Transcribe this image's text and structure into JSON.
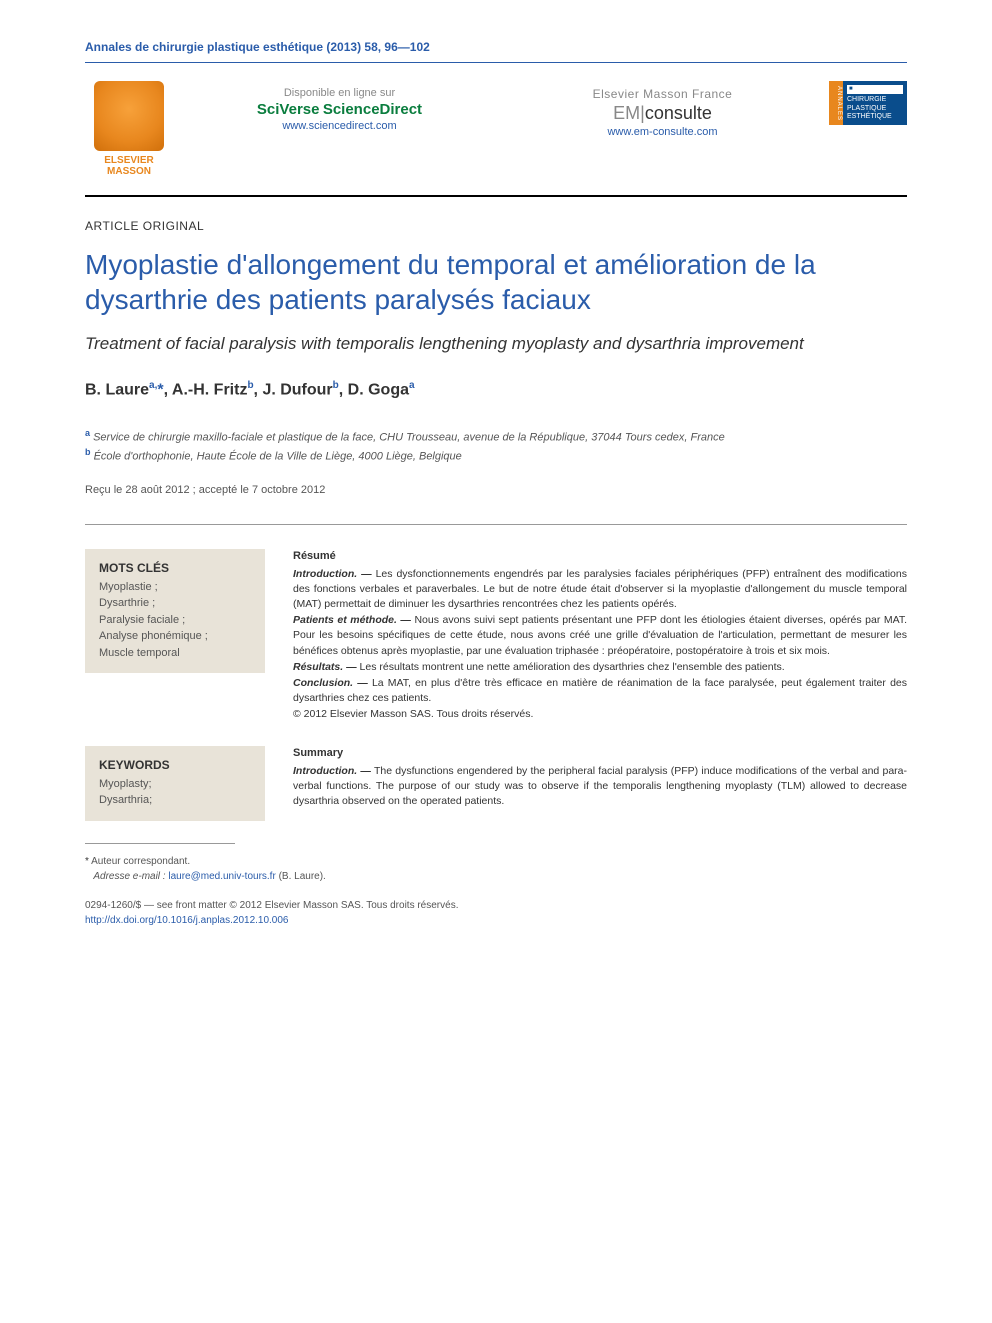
{
  "journal_ref": "Annales de chirurgie plastique esthétique (2013) 58, 96—102",
  "publisher": {
    "name_line1": "ELSEVIER",
    "name_line2": "MASSON"
  },
  "header_left": {
    "available": "Disponible en ligne sur",
    "brand_sv": "SciVerse",
    "brand_sd": "ScienceDirect",
    "url": "www.sciencedirect.com"
  },
  "header_right": {
    "top": "Elsevier Masson France",
    "brand_em": "EM",
    "brand_consulte": "consulte",
    "url": "www.em-consulte.com"
  },
  "cover": {
    "side": "ANNALES",
    "line1": "CHIRURGIE",
    "line2": "PLASTIQUE",
    "line3": "ESTHÉTIQUE"
  },
  "article_type": "ARTICLE ORIGINAL",
  "title_fr": "Myoplastie d'allongement du temporal et amélioration de la dysarthrie des patients paralysés faciaux",
  "title_en": "Treatment of facial paralysis with temporalis lengthening myoplasty and dysarthria improvement",
  "authors_html": "B. Laure<sup>a,</sup><span class='star'>*</span>, A.-H. Fritz<sup>b</sup>, J. Dufour<sup>b</sup>, D. Goga<sup>a</sup>",
  "affiliations": {
    "a": "Service de chirurgie maxillo-faciale et plastique de la face, CHU Trousseau, avenue de la République, 37044 Tours cedex, France",
    "b": "École d'orthophonie, Haute École de la Ville de Liège, 4000 Liège, Belgique"
  },
  "dates": "Reçu le 28 août 2012 ; accepté le 7 octobre 2012",
  "mots_cles": {
    "heading": "MOTS CLÉS",
    "items": "Myoplastie ;\nDysarthrie ;\nParalysie faciale ;\nAnalyse phonémique ;\nMuscle temporal"
  },
  "resume": {
    "heading": "Résumé",
    "intro_label": "Introduction. —",
    "intro": "Les dysfonctionnements engendrés par les paralysies faciales périphériques (PFP) entraînent des modifications des fonctions verbales et paraverbales. Le but de notre étude était d'observer si la myoplastie d'allongement du muscle temporal (MAT) permettait de diminuer les dysarthries rencontrées chez les patients opérés.",
    "patients_label": "Patients et méthode. —",
    "patients": "Nous avons suivi sept patients présentant une PFP dont les étiologies étaient diverses, opérés par MAT. Pour les besoins spécifiques de cette étude, nous avons créé une grille d'évaluation de l'articulation, permettant de mesurer les bénéfices obtenus après myoplastie, par une évaluation triphasée : préopératoire, postopératoire à trois et six mois.",
    "results_label": "Résultats. —",
    "results": "Les résultats montrent une nette amélioration des dysarthries chez l'ensemble des patients.",
    "conclusion_label": "Conclusion. —",
    "conclusion": "La MAT, en plus d'être très efficace en matière de réanimation de la face paralysée, peut également traiter des dysarthries chez ces patients.",
    "copyright": "© 2012 Elsevier Masson SAS. Tous droits réservés."
  },
  "keywords": {
    "heading": "KEYWORDS",
    "items": "Myoplasty;\nDysarthria;"
  },
  "summary": {
    "heading": "Summary",
    "intro_label": "Introduction. —",
    "intro": "The dysfunctions engendered by the peripheral facial paralysis (PFP) induce modifications of the verbal and para-verbal functions. The purpose of our study was to observe if the temporalis lengthening myoplasty (TLM) allowed to decrease dysarthria observed on the operated patients."
  },
  "corresp": {
    "label": "* Auteur correspondant.",
    "email_label": "Adresse e-mail :",
    "email": "laure@med.univ-tours.fr",
    "email_name": "(B. Laure)."
  },
  "bottom": {
    "issn": "0294-1260/$ — see front matter © 2012 Elsevier Masson SAS. Tous droits réservés.",
    "doi": "http://dx.doi.org/10.1016/j.anplas.2012.10.006"
  }
}
